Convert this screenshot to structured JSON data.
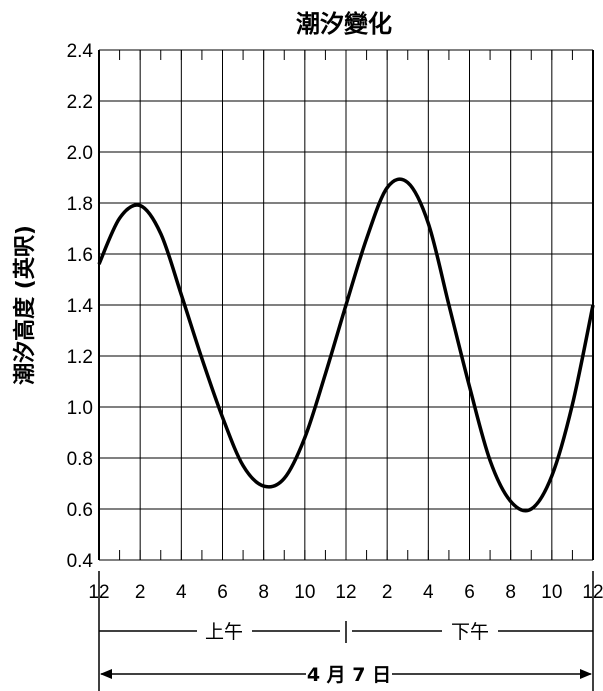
{
  "chart_data": {
    "type": "line",
    "title": "潮汐變化",
    "ylabel": "潮汐高度 (英呎)",
    "xlabel": "",
    "ylim": [
      0.4,
      2.4
    ],
    "y_ticks": [
      "0.4",
      "0.6",
      "0.8",
      "1.0",
      "1.2",
      "1.4",
      "1.6",
      "1.8",
      "2.0",
      "2.2",
      "2.4"
    ],
    "x_ticks": [
      "12",
      "2",
      "4",
      "6",
      "8",
      "10",
      "12",
      "2",
      "4",
      "6",
      "8",
      "10",
      "12"
    ],
    "grid": true,
    "x_unit": "hours since midnight",
    "xlim": [
      0,
      24
    ],
    "series": [
      {
        "x": [
          0,
          1,
          2,
          3,
          4,
          5,
          6,
          7,
          8,
          9,
          10,
          11,
          12,
          13,
          14,
          15,
          16,
          17,
          18,
          19,
          20,
          21,
          22,
          23,
          24
        ],
        "y": [
          1.56,
          1.74,
          1.79,
          1.68,
          1.44,
          1.19,
          0.96,
          0.77,
          0.69,
          0.72,
          0.88,
          1.13,
          1.4,
          1.66,
          1.86,
          1.88,
          1.72,
          1.4,
          1.08,
          0.79,
          0.63,
          0.6,
          0.73,
          1.01,
          1.4
        ]
      }
    ],
    "periods": {
      "am": "上午",
      "pm": "下午"
    },
    "date_label": "4 月 7 日"
  }
}
